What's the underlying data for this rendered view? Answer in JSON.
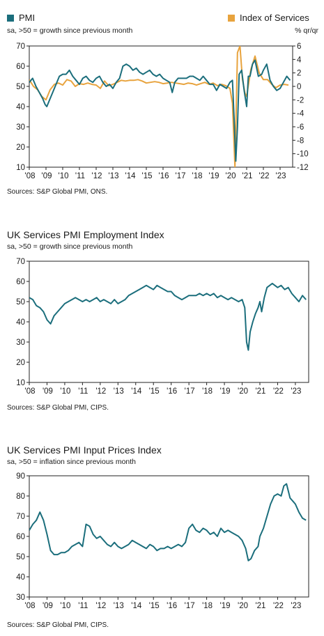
{
  "colors": {
    "pmi": "#1b6e7c",
    "services": "#e8a33d",
    "axis": "#222222",
    "text": "#1a1a1a"
  },
  "chart_data": [
    {
      "type": "line",
      "title": "",
      "legend": [
        "PMI",
        "Index of Services"
      ],
      "subtitle_left": "sa, >50 = growth since previous month",
      "subtitle_right": "% qr/qr",
      "source": "Sources: S&P Global PMI, ONS.",
      "x_ticks": [
        "'08",
        "'09",
        "'10",
        "'11",
        "'12",
        "'13",
        "'14",
        "'15",
        "'16",
        "'17",
        "'18",
        "'19",
        "'20",
        "'21",
        "'22",
        "'23"
      ],
      "ylim": [
        10,
        70
      ],
      "y_ticks": [
        10,
        20,
        30,
        40,
        50,
        60,
        70
      ],
      "y2lim": [
        -12,
        6
      ],
      "y2_ticks": [
        -12,
        -10,
        -8,
        -6,
        -4,
        -2,
        0,
        2,
        4,
        6
      ],
      "series": [
        {
          "name": "PMI",
          "axis": "left",
          "x": [
            2008.0,
            2008.2,
            2008.4,
            2008.6,
            2008.8,
            2008.95,
            2009.05,
            2009.2,
            2009.4,
            2009.6,
            2009.8,
            2010.0,
            2010.2,
            2010.4,
            2010.6,
            2010.8,
            2011.0,
            2011.2,
            2011.4,
            2011.6,
            2011.8,
            2012.0,
            2012.2,
            2012.4,
            2012.6,
            2012.8,
            2013.0,
            2013.2,
            2013.4,
            2013.6,
            2013.8,
            2014.0,
            2014.2,
            2014.4,
            2014.6,
            2014.8,
            2015.0,
            2015.2,
            2015.4,
            2015.6,
            2015.8,
            2016.0,
            2016.2,
            2016.4,
            2016.55,
            2016.7,
            2016.9,
            2017.0,
            2017.2,
            2017.4,
            2017.6,
            2017.8,
            2018.0,
            2018.2,
            2018.4,
            2018.6,
            2018.8,
            2019.0,
            2019.2,
            2019.4,
            2019.6,
            2019.8,
            2020.0,
            2020.15,
            2020.25,
            2020.35,
            2020.45,
            2020.55,
            2020.7,
            2020.85,
            2021.0,
            2021.1,
            2021.2,
            2021.35,
            2021.5,
            2021.7,
            2021.9,
            2022.0,
            2022.2,
            2022.4,
            2022.6,
            2022.8,
            2023.0,
            2023.2,
            2023.4,
            2023.6
          ],
          "y": [
            52,
            54,
            50,
            47,
            44,
            41,
            40,
            43,
            47,
            51,
            55,
            56,
            56,
            58,
            55,
            53,
            51,
            54,
            55,
            53,
            52,
            54,
            55,
            52,
            50,
            51,
            49,
            52,
            54,
            60,
            61,
            60,
            58,
            59,
            57,
            56,
            57,
            58,
            56,
            55,
            56,
            54,
            53,
            52,
            47,
            52,
            54,
            54,
            54,
            54,
            55,
            55,
            54,
            53,
            55,
            53,
            51,
            51,
            48,
            51,
            50,
            49,
            52,
            53,
            34,
            13,
            30,
            56,
            58,
            48,
            40,
            55,
            55,
            61,
            63,
            55,
            56,
            58,
            61,
            53,
            50,
            48,
            49,
            52,
            55,
            53
          ]
        },
        {
          "name": "Index of Services",
          "axis": "right",
          "x": [
            2008.0,
            2008.25,
            2008.5,
            2008.75,
            2009.0,
            2009.25,
            2009.5,
            2009.75,
            2010.0,
            2010.25,
            2010.5,
            2010.75,
            2011.0,
            2011.25,
            2011.5,
            2011.75,
            2012.0,
            2012.25,
            2012.5,
            2012.75,
            2013.0,
            2013.25,
            2013.5,
            2013.75,
            2014.0,
            2014.25,
            2014.5,
            2014.75,
            2015.0,
            2015.25,
            2015.5,
            2015.75,
            2016.0,
            2016.25,
            2016.5,
            2016.75,
            2017.0,
            2017.25,
            2017.5,
            2017.75,
            2018.0,
            2018.25,
            2018.5,
            2018.75,
            2019.0,
            2019.25,
            2019.5,
            2019.75,
            2020.0,
            2020.15,
            2020.3,
            2020.45,
            2020.6,
            2020.75,
            2020.9,
            2021.0,
            2021.25,
            2021.5,
            2021.75,
            2022.0,
            2022.25,
            2022.5,
            2022.75,
            2023.0,
            2023.25,
            2023.5
          ],
          "y": [
            1.0,
            0.0,
            -0.5,
            -1.5,
            -2.0,
            -0.5,
            0.3,
            0.5,
            0.2,
            1.0,
            0.8,
            0.0,
            0.4,
            0.3,
            0.5,
            0.3,
            0.2,
            -0.3,
            0.8,
            0.1,
            0.3,
            0.6,
            0.9,
            0.8,
            0.9,
            0.9,
            1.0,
            0.8,
            0.5,
            0.6,
            0.7,
            0.6,
            0.4,
            0.5,
            0.6,
            0.5,
            0.4,
            0.3,
            0.5,
            0.4,
            0.2,
            0.4,
            0.6,
            0.3,
            0.5,
            0.1,
            0.3,
            0.1,
            -0.3,
            -2.5,
            -12.0,
            5.0,
            6.0,
            1.0,
            -1.0,
            -1.5,
            2.5,
            4.5,
            2.0,
            1.0,
            1.0,
            0.3,
            -0.2,
            0.2,
            0.3,
            0.2
          ]
        }
      ]
    },
    {
      "type": "line",
      "title": "UK Services PMI Employment Index",
      "subtitle": "sa, >50 = growth since previous month",
      "source": "Sources: S&P Global PMI, CIPS.",
      "x_ticks": [
        "'08",
        "'09",
        "'10",
        "'11",
        "'12",
        "'13",
        "'14",
        "'15",
        "'16",
        "'17",
        "'18",
        "'19",
        "'20",
        "'21",
        "'22",
        "'23"
      ],
      "ylim": [
        10,
        70
      ],
      "y_ticks": [
        10,
        20,
        30,
        40,
        50,
        60,
        70
      ],
      "series": [
        {
          "name": "Employment Index",
          "x": [
            2008.0,
            2008.2,
            2008.4,
            2008.6,
            2008.8,
            2009.0,
            2009.2,
            2009.4,
            2009.6,
            2009.8,
            2010.0,
            2010.2,
            2010.4,
            2010.6,
            2010.8,
            2011.0,
            2011.2,
            2011.4,
            2011.6,
            2011.8,
            2012.0,
            2012.2,
            2012.4,
            2012.6,
            2012.8,
            2013.0,
            2013.2,
            2013.4,
            2013.6,
            2013.8,
            2014.0,
            2014.2,
            2014.4,
            2014.6,
            2014.8,
            2015.0,
            2015.2,
            2015.4,
            2015.6,
            2015.8,
            2016.0,
            2016.2,
            2016.4,
            2016.6,
            2016.8,
            2017.0,
            2017.2,
            2017.4,
            2017.6,
            2017.8,
            2018.0,
            2018.2,
            2018.4,
            2018.6,
            2018.8,
            2019.0,
            2019.2,
            2019.4,
            2019.6,
            2019.8,
            2020.0,
            2020.15,
            2020.25,
            2020.35,
            2020.45,
            2020.6,
            2020.75,
            2020.9,
            2021.0,
            2021.1,
            2021.25,
            2021.4,
            2021.55,
            2021.7,
            2021.85,
            2022.0,
            2022.2,
            2022.4,
            2022.6,
            2022.8,
            2023.0,
            2023.2,
            2023.4,
            2023.6
          ],
          "y": [
            52,
            51,
            48,
            47,
            45,
            41,
            39,
            43,
            45,
            47,
            49,
            50,
            51,
            52,
            51,
            50,
            51,
            50,
            51,
            52,
            50,
            51,
            50,
            49,
            51,
            49,
            50,
            51,
            53,
            54,
            55,
            56,
            57,
            58,
            57,
            56,
            58,
            57,
            56,
            55,
            55,
            53,
            52,
            51,
            52,
            53,
            53,
            53,
            54,
            53,
            54,
            53,
            54,
            52,
            53,
            52,
            51,
            52,
            51,
            50,
            51,
            47,
            30,
            26,
            35,
            40,
            44,
            47,
            50,
            45,
            52,
            57,
            58,
            59,
            58,
            57,
            58,
            56,
            57,
            54,
            52,
            50,
            53,
            51
          ]
        }
      ]
    },
    {
      "type": "line",
      "title": "UK Services PMI Input Prices Index",
      "subtitle": "sa, >50 = inflation since previous month",
      "source": "Sources: S&P Global PMI, CIPS.",
      "x_ticks": [
        "'08",
        "'09",
        "'10",
        "'11",
        "'12",
        "'13",
        "'14",
        "'15",
        "'16",
        "'17",
        "'18",
        "'19",
        "'20",
        "'21",
        "'22",
        "'23"
      ],
      "ylim": [
        30,
        90
      ],
      "y_ticks": [
        30,
        40,
        50,
        60,
        70,
        80,
        90
      ],
      "series": [
        {
          "name": "Input Prices Index",
          "x": [
            2008.0,
            2008.2,
            2008.4,
            2008.6,
            2008.8,
            2009.0,
            2009.2,
            2009.4,
            2009.6,
            2009.8,
            2010.0,
            2010.2,
            2010.4,
            2010.6,
            2010.8,
            2011.0,
            2011.2,
            2011.4,
            2011.6,
            2011.8,
            2012.0,
            2012.2,
            2012.4,
            2012.6,
            2012.8,
            2013.0,
            2013.2,
            2013.4,
            2013.6,
            2013.8,
            2014.0,
            2014.2,
            2014.4,
            2014.6,
            2014.8,
            2015.0,
            2015.2,
            2015.4,
            2015.6,
            2015.8,
            2016.0,
            2016.2,
            2016.4,
            2016.6,
            2016.8,
            2017.0,
            2017.2,
            2017.4,
            2017.6,
            2017.8,
            2018.0,
            2018.2,
            2018.4,
            2018.6,
            2018.8,
            2019.0,
            2019.2,
            2019.4,
            2019.6,
            2019.8,
            2020.0,
            2020.2,
            2020.35,
            2020.5,
            2020.7,
            2020.9,
            2021.0,
            2021.2,
            2021.4,
            2021.6,
            2021.8,
            2022.0,
            2022.2,
            2022.35,
            2022.5,
            2022.7,
            2022.9,
            2023.0,
            2023.2,
            2023.4,
            2023.6
          ],
          "y": [
            63,
            66,
            68,
            72,
            68,
            61,
            53,
            51,
            51,
            52,
            52,
            53,
            55,
            56,
            57,
            55,
            66,
            65,
            61,
            59,
            60,
            58,
            56,
            55,
            57,
            55,
            54,
            55,
            56,
            58,
            57,
            56,
            55,
            54,
            56,
            55,
            53,
            54,
            54,
            55,
            54,
            55,
            56,
            55,
            57,
            64,
            66,
            63,
            62,
            64,
            63,
            61,
            62,
            60,
            64,
            62,
            63,
            62,
            61,
            60,
            58,
            54,
            48,
            49,
            53,
            55,
            60,
            64,
            70,
            76,
            80,
            81,
            80,
            85,
            86,
            79,
            77,
            76,
            72,
            69,
            68
          ]
        }
      ]
    }
  ]
}
